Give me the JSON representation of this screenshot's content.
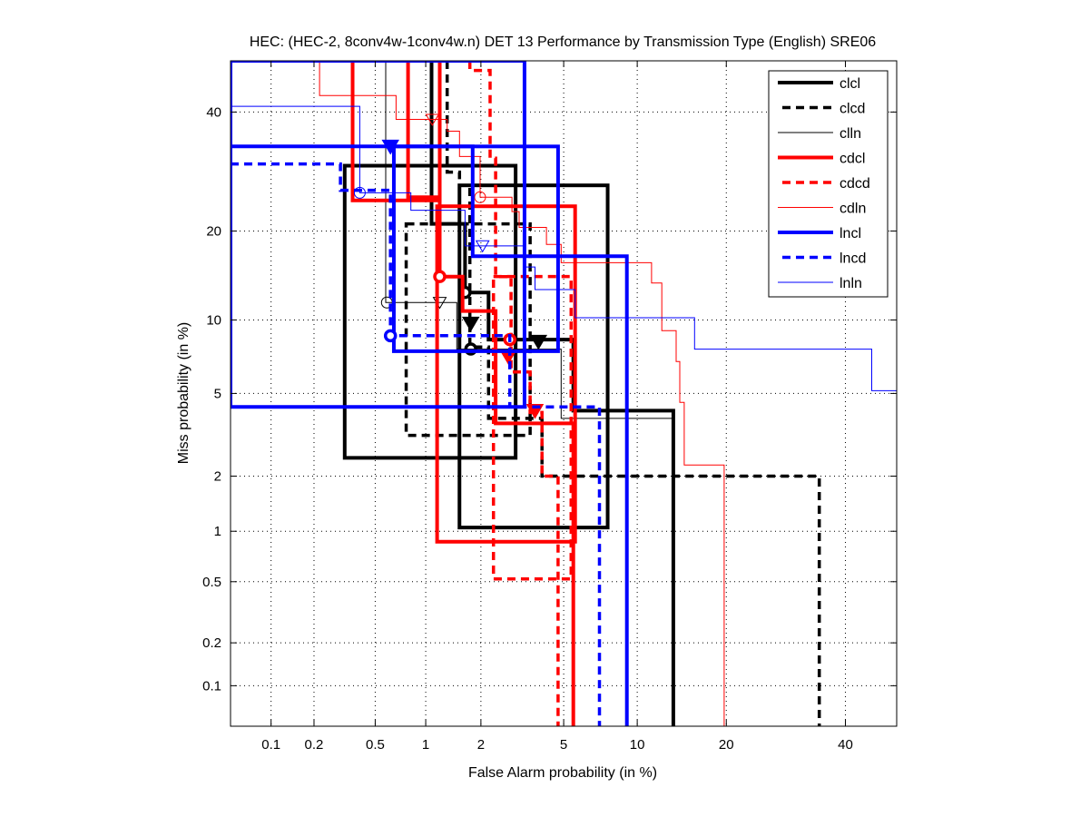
{
  "chart_data": {
    "type": "line",
    "title": "HEC: (HEC-2, 8conv4w-1conv4w.n) DET 13 Performance by Transmission Type (English) SRE06",
    "xlabel": "False Alarm probability (in %)",
    "ylabel": "Miss probability (in %)",
    "xscale": "probit",
    "yscale": "probit",
    "xlim": [
      0.05,
      50
    ],
    "ylim": [
      0.05,
      50
    ],
    "xticks": [
      0.1,
      0.2,
      0.5,
      1,
      2,
      5,
      10,
      20,
      40
    ],
    "yticks": [
      0.1,
      0.2,
      0.5,
      1,
      2,
      5,
      10,
      20,
      40
    ],
    "xtick_labels": [
      "0.1",
      "0.2",
      "0.5",
      "1",
      "2",
      "5",
      "10",
      "20",
      "40"
    ],
    "ytick_labels": [
      "0.1",
      "0.2",
      "0.5",
      "1",
      "2",
      "5",
      "10",
      "20",
      "40"
    ],
    "grid": true,
    "legend_position": "top-right",
    "series": [
      {
        "name": "clcl",
        "color": "#000000",
        "style": "thick",
        "points": [
          [
            1.08,
            50
          ],
          [
            1.08,
            21.0
          ],
          [
            1.65,
            21.0
          ],
          [
            1.65,
            12.6
          ],
          [
            2.19,
            12.6
          ],
          [
            2.19,
            8.4
          ],
          [
            5.51,
            8.4
          ],
          [
            5.51,
            4.18
          ],
          [
            13.5,
            4.18
          ],
          [
            13.5,
            0.05
          ]
        ],
        "markers": [
          {
            "type": "circle",
            "x": 1.65,
            "y": 12.6
          },
          {
            "type": "triangle",
            "x": 1.77,
            "y": 9.7
          }
        ],
        "boxes": [
          [
            0.32,
            2.99,
            2.48,
            30.2
          ],
          [
            1.54,
            7.67,
            1.05,
            26.9
          ]
        ]
      },
      {
        "name": "clcd",
        "color": "#000000",
        "style": "dashed",
        "points": [
          [
            1.32,
            50
          ],
          [
            1.32,
            29.1
          ],
          [
            1.54,
            29.1
          ],
          [
            1.54,
            26.9
          ],
          [
            1.75,
            26.9
          ],
          [
            1.75,
            7.85
          ],
          [
            2.19,
            7.85
          ],
          [
            2.19,
            3.85
          ],
          [
            3.99,
            3.85
          ],
          [
            3.99,
            2.0
          ],
          [
            35.1,
            2.0
          ],
          [
            35.1,
            0.05
          ]
        ],
        "markers": [
          {
            "type": "triangle",
            "x": 3.84,
            "y": 8.25
          },
          {
            "type": "circle",
            "x": 1.77,
            "y": 7.7
          }
        ],
        "boxes": [
          [
            0.77,
            3.51,
            3.2,
            21.0
          ]
        ]
      },
      {
        "name": "clln",
        "color": "#000000",
        "style": "thin",
        "points": [
          [
            0.58,
            50
          ],
          [
            0.58,
            11.6
          ],
          [
            1.49,
            11.6
          ],
          [
            1.49,
            7.7
          ],
          [
            4.87,
            7.7
          ],
          [
            4.87,
            3.85
          ],
          [
            13.5,
            3.85
          ],
          [
            13.5,
            0.05
          ]
        ],
        "markers": [
          {
            "type": "circle",
            "x": 0.59,
            "y": 11.6
          },
          {
            "type": "triangle",
            "x": 1.2,
            "y": 11.6
          }
        ],
        "boxes": []
      },
      {
        "name": "cdcl",
        "color": "#ff0000",
        "style": "thick",
        "points": [
          [
            0.79,
            50
          ],
          [
            0.79,
            25.0
          ],
          [
            1.2,
            25.0
          ],
          [
            1.2,
            14.3
          ],
          [
            1.6,
            14.3
          ],
          [
            1.6,
            10.8
          ],
          [
            2.38,
            10.8
          ],
          [
            2.38,
            3.65
          ],
          [
            5.51,
            3.65
          ],
          [
            5.51,
            0.05
          ]
        ],
        "markers": [
          {
            "type": "circle",
            "x": 1.2,
            "y": 14.3
          },
          {
            "type": "triangle",
            "x": 2.75,
            "y": 7.2
          }
        ],
        "boxes": [
          [
            1.16,
            5.61,
            0.87,
            23.6
          ],
          [
            0.36,
            1.2,
            24.5,
            50
          ]
        ]
      },
      {
        "name": "cdcd",
        "color": "#ff0000",
        "style": "dashed",
        "points": [
          [
            1.75,
            50
          ],
          [
            1.75,
            48.1
          ],
          [
            2.23,
            48.1
          ],
          [
            2.23,
            31.5
          ],
          [
            2.38,
            31.5
          ],
          [
            2.38,
            14.3
          ],
          [
            2.84,
            14.3
          ],
          [
            2.84,
            6.2
          ],
          [
            3.51,
            6.2
          ],
          [
            3.51,
            4.1
          ],
          [
            3.99,
            4.1
          ],
          [
            3.99,
            2.0
          ],
          [
            4.72,
            2.0
          ],
          [
            4.72,
            0.05
          ]
        ],
        "markers": [
          {
            "type": "circle",
            "x": 2.8,
            "y": 8.4
          },
          {
            "type": "triangle",
            "x": 3.7,
            "y": 4.18
          }
        ],
        "boxes": [
          [
            2.32,
            5.39,
            0.52,
            14.3
          ]
        ]
      },
      {
        "name": "cdln",
        "color": "#ff0000",
        "style": "thin",
        "points": [
          [
            0.218,
            50
          ],
          [
            0.218,
            43.2
          ],
          [
            0.67,
            43.2
          ],
          [
            0.67,
            38.6
          ],
          [
            1.32,
            38.6
          ],
          [
            1.32,
            36.4
          ],
          [
            1.54,
            36.4
          ],
          [
            1.54,
            31.8
          ],
          [
            1.98,
            31.8
          ],
          [
            1.98,
            25.0
          ],
          [
            2.87,
            25.0
          ],
          [
            2.87,
            22.8
          ],
          [
            3.11,
            22.8
          ],
          [
            3.11,
            20.5
          ],
          [
            4.18,
            20.5
          ],
          [
            4.18,
            18.2
          ],
          [
            4.87,
            18.2
          ],
          [
            4.87,
            15.9
          ],
          [
            11.3,
            15.9
          ],
          [
            11.3,
            13.6
          ],
          [
            12.3,
            13.6
          ],
          [
            12.3,
            9.1
          ],
          [
            13.8,
            9.1
          ],
          [
            13.8,
            6.85
          ],
          [
            14.2,
            6.85
          ],
          [
            14.2,
            4.56
          ],
          [
            14.7,
            4.56
          ],
          [
            14.7,
            2.28
          ],
          [
            19.7,
            2.28
          ],
          [
            19.7,
            0.05
          ]
        ],
        "markers": [
          {
            "type": "triangle",
            "x": 1.09,
            "y": 38.6
          },
          {
            "type": "circle",
            "x": 1.98,
            "y": 25.0
          }
        ],
        "boxes": []
      },
      {
        "name": "lncl",
        "color": "#0000ff",
        "style": "thick",
        "points": [
          [
            0.05,
            33.6
          ],
          [
            1.81,
            33.6
          ],
          [
            1.81,
            16.7
          ],
          [
            9.13,
            16.7
          ],
          [
            9.13,
            0.05
          ]
        ],
        "markers": [
          {
            "type": "triangle",
            "x": 0.62,
            "y": 33.6
          }
        ],
        "boxes": [
          [
            0.65,
            4.72,
            7.55,
            33.6
          ],
          [
            0.05,
            3.3,
            4.35,
            50
          ]
        ]
      },
      {
        "name": "lncd",
        "color": "#0000ff",
        "style": "dashed",
        "points": [
          [
            0.05,
            30.5
          ],
          [
            0.3,
            30.5
          ],
          [
            0.3,
            26.1
          ],
          [
            0.62,
            26.1
          ],
          [
            0.62,
            8.7
          ],
          [
            2.8,
            8.7
          ],
          [
            2.8,
            4.35
          ],
          [
            7.1,
            4.35
          ],
          [
            7.1,
            0.05
          ]
        ],
        "markers": [
          {
            "type": "circle",
            "x": 0.62,
            "y": 8.7
          }
        ],
        "boxes": []
      },
      {
        "name": "lnln",
        "color": "#0000ff",
        "style": "thin",
        "points": [
          [
            0.05,
            41.1
          ],
          [
            0.4,
            41.1
          ],
          [
            0.4,
            25.7
          ],
          [
            0.82,
            25.7
          ],
          [
            0.82,
            23.0
          ],
          [
            1.65,
            23.0
          ],
          [
            1.65,
            18.0
          ],
          [
            3.3,
            18.0
          ],
          [
            3.3,
            15.4
          ],
          [
            3.7,
            15.4
          ],
          [
            3.7,
            12.9
          ],
          [
            5.61,
            12.9
          ],
          [
            5.61,
            10.2
          ],
          [
            15.9,
            10.2
          ],
          [
            15.9,
            7.7
          ],
          [
            45.1,
            7.7
          ],
          [
            45.1,
            5.14
          ],
          [
            50,
            5.14
          ]
        ],
        "markers": [
          {
            "type": "circle",
            "x": 0.4,
            "y": 25.7
          },
          {
            "type": "triangle",
            "x": 2.04,
            "y": 18.0
          }
        ],
        "boxes": []
      }
    ]
  }
}
